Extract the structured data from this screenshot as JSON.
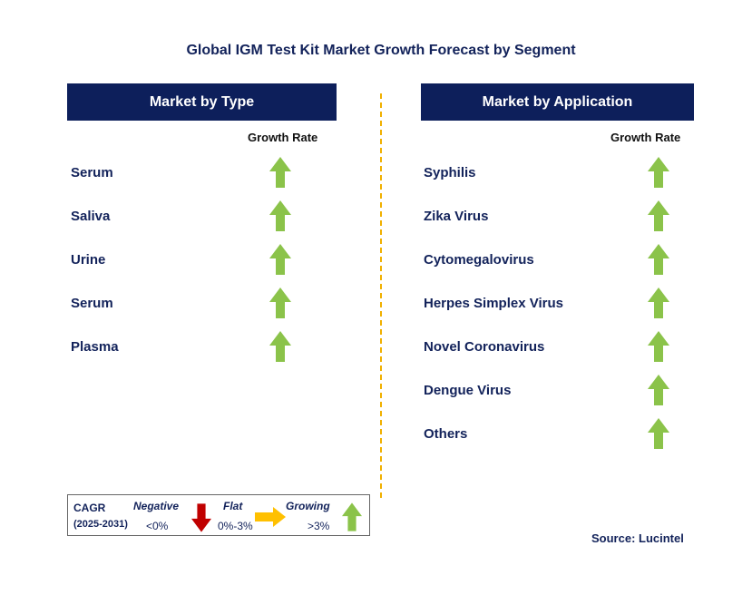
{
  "title": "Global IGM Test Kit Market Growth Forecast by Segment",
  "colors": {
    "header_bg": "#0d1f5b",
    "text": "#12225a",
    "growing": "#8bc34a",
    "negative": "#c00000",
    "flat": "#ffc000",
    "divider": "#f0b000"
  },
  "left_panel": {
    "header": "Market by Type",
    "growth_label": "Growth Rate",
    "items": [
      {
        "label": "Serum",
        "trend": "growing"
      },
      {
        "label": "Saliva",
        "trend": "growing"
      },
      {
        "label": "Urine",
        "trend": "growing"
      },
      {
        "label": "Serum",
        "trend": "growing"
      },
      {
        "label": "Plasma",
        "trend": "growing"
      }
    ]
  },
  "right_panel": {
    "header": "Market by Application",
    "growth_label": "Growth Rate",
    "items": [
      {
        "label": "Syphilis",
        "trend": "growing"
      },
      {
        "label": "Zika Virus",
        "trend": "growing"
      },
      {
        "label": "Cytomegalovirus",
        "trend": "growing"
      },
      {
        "label": "Herpes Simplex Virus",
        "trend": "growing"
      },
      {
        "label": "Novel Coronavirus",
        "trend": "growing"
      },
      {
        "label": "Dengue Virus",
        "trend": "growing"
      },
      {
        "label": "Others",
        "trend": "growing"
      }
    ]
  },
  "legend": {
    "cagr_label": "CAGR",
    "period": "(2025-2031)",
    "negative": {
      "label": "Negative",
      "range": "<0%",
      "icon": "down-arrow-icon"
    },
    "flat": {
      "label": "Flat",
      "range": "0%-3%",
      "icon": "right-arrow-icon"
    },
    "growing": {
      "label": "Growing",
      "range": ">3%",
      "icon": "up-arrow-icon"
    }
  },
  "source": "Source: Lucintel"
}
